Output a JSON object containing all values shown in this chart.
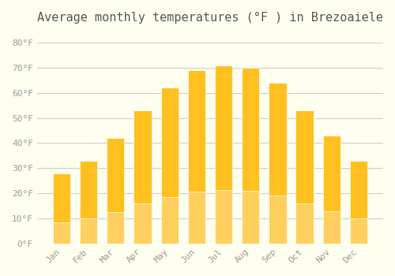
{
  "title": "Average monthly temperatures (°F ) in Brezoaiele",
  "months": [
    "Jan",
    "Feb",
    "Mar",
    "Apr",
    "May",
    "Jun",
    "Jul",
    "Aug",
    "Sep",
    "Oct",
    "Nov",
    "Dec"
  ],
  "values": [
    28,
    33,
    42,
    53,
    62,
    69,
    71,
    70,
    64,
    53,
    43,
    33
  ],
  "bar_color_top": "#FFC020",
  "bar_color_bottom": "#FFD060",
  "background_color": "#FFFFF0",
  "grid_color": "#CCCCCC",
  "ylim": [
    0,
    85
  ],
  "yticks": [
    0,
    10,
    20,
    30,
    40,
    50,
    60,
    70,
    80
  ],
  "ytick_labels": [
    "0°F",
    "10°F",
    "20°F",
    "30°F",
    "40°F",
    "50°F",
    "60°F",
    "70°F",
    "80°F"
  ],
  "title_fontsize": 11,
  "tick_fontsize": 8,
  "font_family": "monospace"
}
